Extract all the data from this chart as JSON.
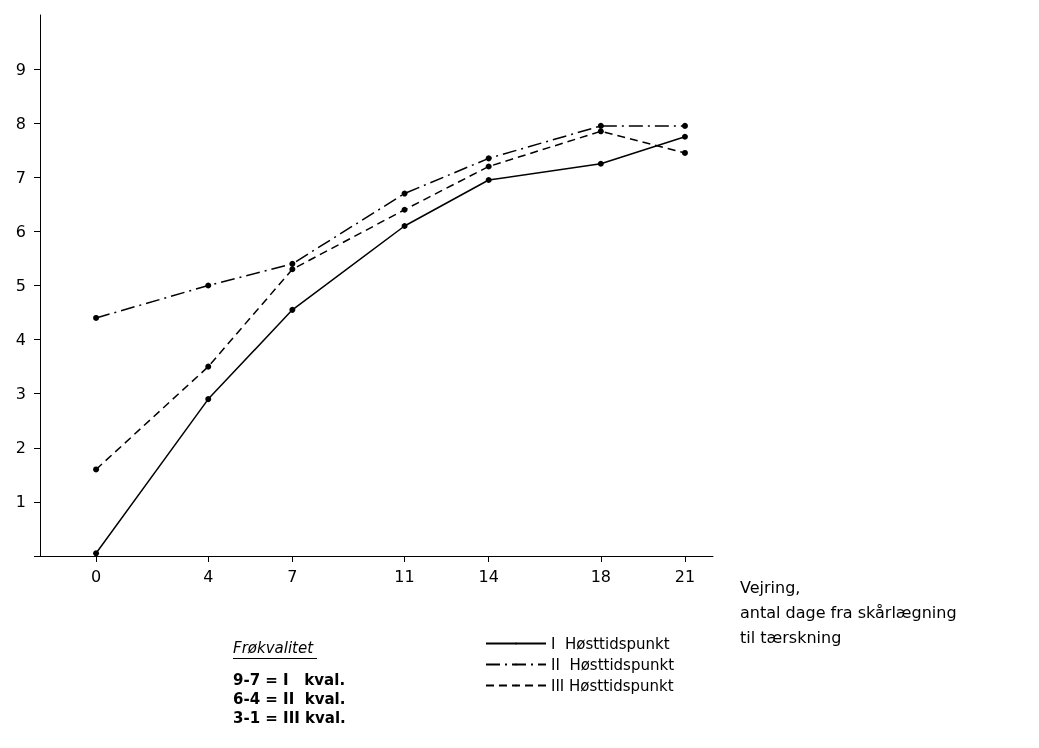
{
  "chart_data": {
    "type": "line",
    "xlabel": "Vejring,\nantal dage fra skårlægning\ntil tærskning",
    "x": [
      0,
      4,
      7,
      11,
      14,
      18,
      21
    ],
    "xlim": [
      -2,
      22
    ],
    "xticks": [
      0,
      4,
      7,
      11,
      14,
      18,
      21
    ],
    "ylim": [
      0,
      10
    ],
    "yticks": [
      {
        "value": 0,
        "label": null
      },
      1,
      2,
      3,
      4,
      5,
      6,
      7,
      8,
      9
    ],
    "series": [
      {
        "name": "I  Høsttidspunkt",
        "color": "#000000",
        "line_style": "solid",
        "values": [
          0.05,
          2.9,
          4.55,
          6.1,
          6.95,
          7.25,
          7.75
        ]
      },
      {
        "name": "II  Høsttidspunkt",
        "color": "#000000",
        "line_style": "dashdot",
        "values": [
          4.4,
          5.0,
          5.4,
          6.7,
          7.35,
          7.95,
          7.95
        ]
      },
      {
        "name": "III Høsttidspunkt",
        "color": "#000000",
        "line_style": "dashed",
        "values": [
          1.6,
          3.5,
          5.3,
          6.4,
          7.2,
          7.85,
          7.45
        ]
      }
    ],
    "marker": "circle",
    "grid": false,
    "legend": "bottom",
    "annotations": [
      "Frøkvalitet",
      "9-7 = I   kval.\n6-4 = II  kval.\n3-1 = III kval."
    ]
  }
}
